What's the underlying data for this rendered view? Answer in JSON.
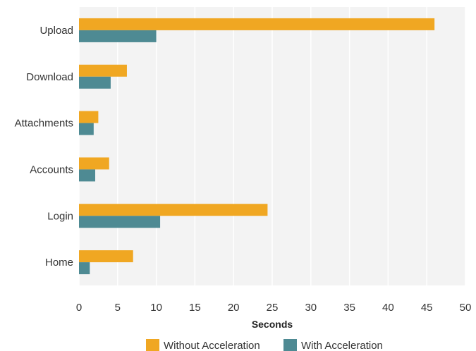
{
  "chart_data": {
    "type": "bar",
    "orientation": "horizontal",
    "categories": [
      "Upload",
      "Download",
      "Attachments",
      "Accounts",
      "Login",
      "Home"
    ],
    "series": [
      {
        "name": "Without Acceleration",
        "color": "#F0A722",
        "values": [
          46,
          6.2,
          2.5,
          3.9,
          24.4,
          7.0
        ]
      },
      {
        "name": "With Acceleration",
        "color": "#4E8A93",
        "values": [
          10,
          4.1,
          1.9,
          2.1,
          10.5,
          1.4
        ]
      }
    ],
    "xlabel": "Seconds",
    "ylabel": "",
    "xlim": [
      0,
      50
    ],
    "xticks": [
      0,
      5,
      10,
      15,
      20,
      25,
      30,
      35,
      40,
      45,
      50
    ],
    "grid": "vertical",
    "legend_position": "bottom",
    "plot_background": "#F3F3F3"
  }
}
